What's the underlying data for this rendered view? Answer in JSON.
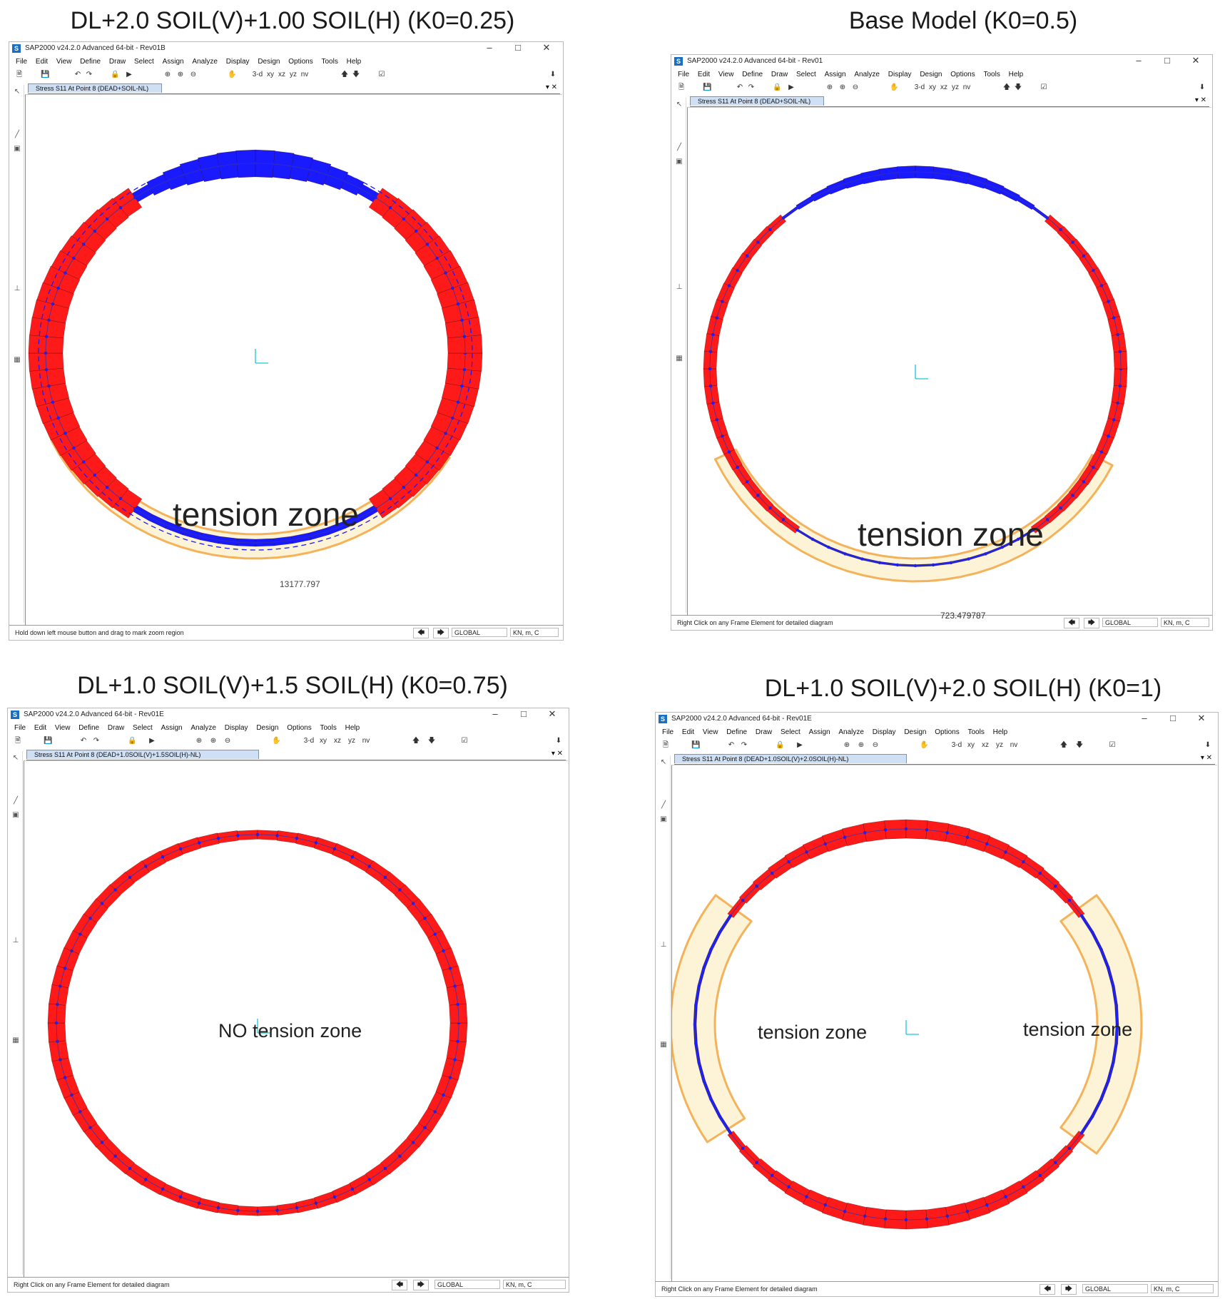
{
  "panels": [
    {
      "heading": "DL+2.0 SOIL(V)+1.00 SOIL(H) (K0=0.25)",
      "window_title": "SAP2000 v24.2.0 Advanced 64-bit - Rev01B",
      "tab": "Stress S11 At Point 8 (DEAD+SOIL-NL)",
      "status": "Hold down left mouse button and drag to mark zoom region",
      "coord": "GLOBAL",
      "units": "KN, m, C",
      "annotation": "tension zone",
      "value_label": "13177.797"
    },
    {
      "heading": "Base Model (K0=0.5)",
      "window_title": "SAP2000 v24.2.0 Advanced 64-bit - Rev01",
      "tab": "Stress S11 At Point 8 (DEAD+SOIL-NL)",
      "status": "Right Click on any Frame Element for detailed diagram",
      "coord": "GLOBAL",
      "units": "KN, m, C",
      "annotation": "tension zone",
      "value_label": "723.479787"
    },
    {
      "heading": "DL+1.0 SOIL(V)+1.5 SOIL(H) (K0=0.75)",
      "window_title": "SAP2000 v24.2.0 Advanced 64-bit - Rev01E",
      "tab": "Stress S11 At Point 8 (DEAD+1.0SOIL(V)+1.5SOIL(H)-NL)",
      "status": "Right Click on any Frame Element for detailed diagram",
      "coord": "GLOBAL",
      "units": "KN, m, C",
      "annotation": "NO tension zone"
    },
    {
      "heading": "DL+1.0 SOIL(V)+2.0 SOIL(H) (K0=1)",
      "window_title": "SAP2000 v24.2.0 Advanced 64-bit - Rev01E",
      "tab": "Stress S11 At Point 8 (DEAD+1.0SOIL(V)+2.0SOIL(H)-NL)",
      "status": "Right Click on any Frame Element for detailed diagram",
      "coord": "GLOBAL",
      "units": "KN, m, C",
      "annotation_left": "tension zone",
      "annotation_right": "tension zone"
    }
  ],
  "menu": [
    "File",
    "Edit",
    "View",
    "Define",
    "Draw",
    "Select",
    "Assign",
    "Analyze",
    "Display",
    "Design",
    "Options",
    "Tools",
    "Help"
  ],
  "toolbar_text": {
    "view3d": "3-d",
    "xy": "xy",
    "xz": "xz",
    "yz": "yz",
    "nv": "nv"
  },
  "colors": {
    "compression": "#ff1a1a",
    "tension": "#1a1aff",
    "highlight_fill": "#fdf1cf",
    "highlight_stroke": "#f4b25a",
    "axis": "#19c7d6",
    "tab_bg": "#cfe0f5"
  },
  "icons": {
    "app": "sap2000-logo-icon",
    "minimize": "minimize-icon",
    "maximize": "maximize-icon",
    "close": "close-icon"
  }
}
